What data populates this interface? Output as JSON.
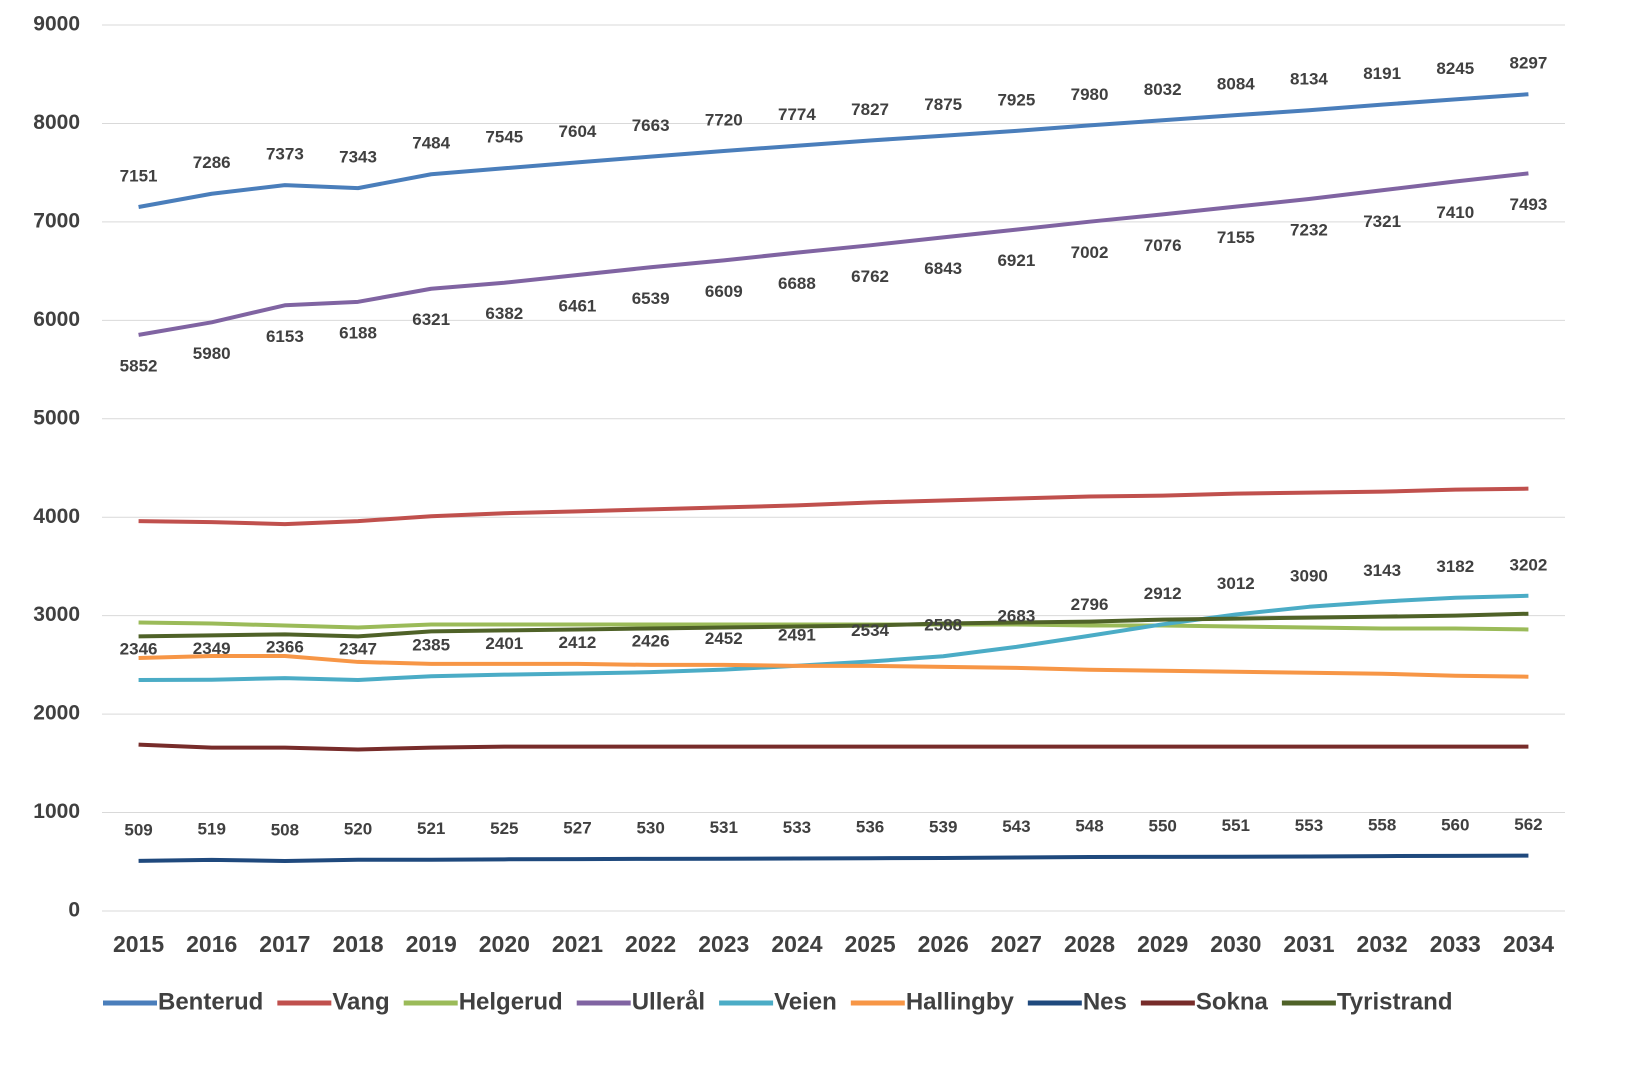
{
  "chart_data": {
    "type": "line",
    "categories": [
      "2015",
      "2016",
      "2017",
      "2018",
      "2019",
      "2020",
      "2021",
      "2022",
      "2023",
      "2024",
      "2025",
      "2026",
      "2027",
      "2028",
      "2029",
      "2030",
      "2031",
      "2032",
      "2033",
      "2034"
    ],
    "ylim": [
      0,
      9000
    ],
    "yticks": [
      0,
      1000,
      2000,
      3000,
      4000,
      5000,
      6000,
      7000,
      8000,
      9000
    ],
    "grid": true,
    "legend": "bottom",
    "series": [
      {
        "name": "Benterud",
        "color": "#4a7ebb",
        "label_position": "above",
        "values": [
          7151,
          7286,
          7373,
          7343,
          7484,
          7545,
          7604,
          7663,
          7720,
          7774,
          7827,
          7875,
          7925,
          7980,
          8032,
          8084,
          8134,
          8191,
          8245,
          8297
        ]
      },
      {
        "name": "Vang",
        "color": "#c0504d",
        "values": [
          3960,
          3950,
          3930,
          3960,
          4010,
          4040,
          4060,
          4080,
          4100,
          4120,
          4150,
          4170,
          4190,
          4210,
          4220,
          4240,
          4250,
          4260,
          4280,
          4290
        ]
      },
      {
        "name": "Helgerud",
        "color": "#9bbb59",
        "values": [
          2930,
          2920,
          2900,
          2880,
          2910,
          2910,
          2910,
          2910,
          2910,
          2910,
          2910,
          2910,
          2910,
          2900,
          2900,
          2890,
          2880,
          2870,
          2870,
          2860
        ]
      },
      {
        "name": "Ullerål",
        "color": "#8064a2",
        "label_position": "below",
        "values": [
          5852,
          5980,
          6153,
          6188,
          6321,
          6382,
          6461,
          6539,
          6609,
          6688,
          6762,
          6843,
          6921,
          7002,
          7076,
          7155,
          7232,
          7321,
          7410,
          7493
        ]
      },
      {
        "name": "Veien",
        "color": "#4bacc6",
        "label_position": "above",
        "values": [
          2346,
          2349,
          2366,
          2347,
          2385,
          2401,
          2412,
          2426,
          2452,
          2491,
          2534,
          2588,
          2683,
          2796,
          2912,
          3012,
          3090,
          3143,
          3182,
          3202
        ]
      },
      {
        "name": "Hallingby",
        "color": "#f79646",
        "values": [
          2570,
          2590,
          2590,
          2530,
          2510,
          2510,
          2510,
          2500,
          2500,
          2490,
          2490,
          2480,
          2470,
          2450,
          2440,
          2430,
          2420,
          2410,
          2390,
          2380
        ]
      },
      {
        "name": "Nes",
        "color": "#1f497d",
        "label_position": "above",
        "values": [
          509,
          519,
          508,
          520,
          521,
          525,
          527,
          530,
          531,
          533,
          536,
          539,
          543,
          548,
          550,
          551,
          553,
          558,
          560,
          562
        ]
      },
      {
        "name": "Sokna",
        "color": "#772c2a",
        "values": [
          1690,
          1660,
          1660,
          1640,
          1660,
          1670,
          1670,
          1670,
          1670,
          1670,
          1670,
          1670,
          1670,
          1670,
          1670,
          1670,
          1670,
          1670,
          1670,
          1670
        ]
      },
      {
        "name": "Tyristrand",
        "color": "#4f6228",
        "values": [
          2790,
          2800,
          2810,
          2790,
          2840,
          2850,
          2860,
          2870,
          2880,
          2890,
          2900,
          2920,
          2930,
          2940,
          2960,
          2970,
          2980,
          2990,
          3000,
          3020
        ]
      }
    ]
  }
}
